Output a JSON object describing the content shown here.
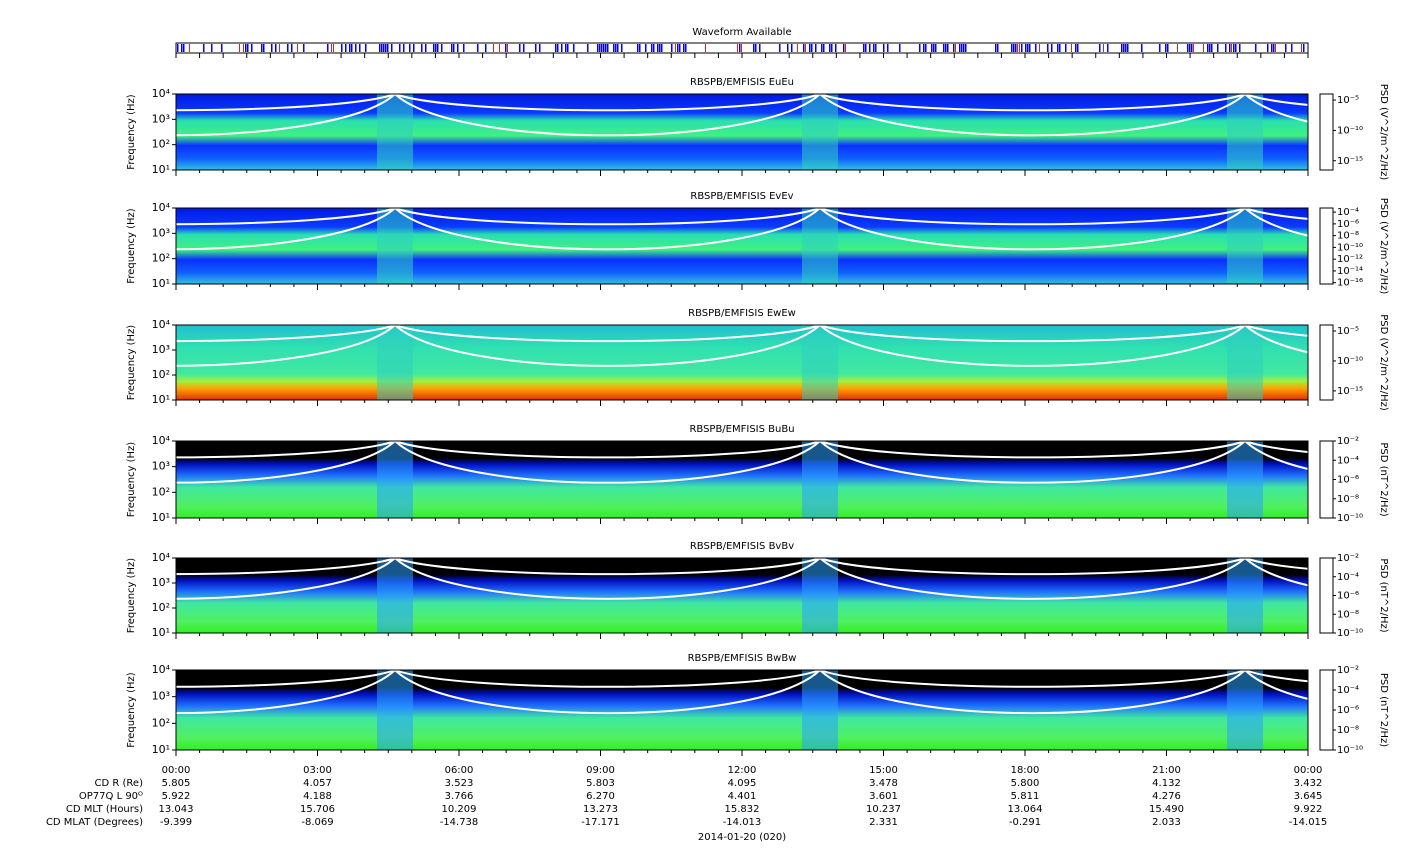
{
  "waveform": {
    "title": "Waveform Available"
  },
  "chart_data": [
    {
      "type": "spectrogram",
      "title": "RBSPB/EMFISIS  EuEu",
      "ylabel": "Frequency (Hz)",
      "log_y": true,
      "style": "electric",
      "ylim": [
        10,
        10000
      ],
      "yticks": [
        {
          "value": 10,
          "label": "10¹"
        },
        {
          "value": 100,
          "label": "10²"
        },
        {
          "value": 1000,
          "label": "10³"
        },
        {
          "value": 10000,
          "label": "10⁴"
        }
      ],
      "colorbar": {
        "label": "PSD (V^2/m^2/Hz)",
        "lim": [
          3e-17,
          0.0001
        ],
        "ticks": [
          {
            "value": 1e-05,
            "label": "10⁻⁵"
          },
          {
            "value": 1e-10,
            "label": "10⁻¹⁰"
          },
          {
            "value": 1e-15,
            "label": "10⁻¹⁵"
          }
        ]
      }
    },
    {
      "type": "spectrogram",
      "title": "RBSPB/EMFISIS  EvEv",
      "ylabel": "Frequency (Hz)",
      "log_y": true,
      "style": "electric",
      "ylim": [
        10,
        10000
      ],
      "yticks": [
        {
          "value": 10,
          "label": "10¹"
        },
        {
          "value": 100,
          "label": "10²"
        },
        {
          "value": 1000,
          "label": "10³"
        },
        {
          "value": 10000,
          "label": "10⁴"
        }
      ],
      "colorbar": {
        "label": "PSD (V^2/m^2/Hz)",
        "lim": [
          6e-17,
          0.0005
        ],
        "ticks": [
          {
            "value": 0.0001,
            "label": "10⁻⁴"
          },
          {
            "value": 1e-06,
            "label": "10⁻⁶"
          },
          {
            "value": 1e-08,
            "label": "10⁻⁸"
          },
          {
            "value": 1e-10,
            "label": "10⁻¹⁰"
          },
          {
            "value": 1e-12,
            "label": "10⁻¹²"
          },
          {
            "value": 1e-14,
            "label": "10⁻¹⁴"
          },
          {
            "value": 1e-16,
            "label": "10⁻¹⁶"
          }
        ]
      }
    },
    {
      "type": "spectrogram",
      "title": "RBSPB/EMFISIS  EwEw",
      "ylabel": "Frequency (Hz)",
      "log_y": true,
      "style": "electric-w",
      "ylim": [
        10,
        10000
      ],
      "yticks": [
        {
          "value": 10,
          "label": "10¹"
        },
        {
          "value": 100,
          "label": "10²"
        },
        {
          "value": 1000,
          "label": "10³"
        },
        {
          "value": 10000,
          "label": "10⁴"
        }
      ],
      "colorbar": {
        "label": "PSD (V^2/m^2/Hz)",
        "lim": [
          3e-17,
          0.0001
        ],
        "ticks": [
          {
            "value": 1e-05,
            "label": "10⁻⁵"
          },
          {
            "value": 1e-10,
            "label": "10⁻¹⁰"
          },
          {
            "value": 1e-15,
            "label": "10⁻¹⁵"
          }
        ]
      }
    },
    {
      "type": "spectrogram",
      "title": "RBSPB/EMFISIS  BuBu",
      "ylabel": "Frequency (Hz)",
      "log_y": true,
      "style": "magnetic",
      "ylim": [
        10,
        10000
      ],
      "yticks": [
        {
          "value": 10,
          "label": "10¹"
        },
        {
          "value": 100,
          "label": "10²"
        },
        {
          "value": 1000,
          "label": "10³"
        },
        {
          "value": 10000,
          "label": "10⁴"
        }
      ],
      "colorbar": {
        "label": "PSD (nT^2/Hz)",
        "lim": [
          1e-10,
          0.01
        ],
        "ticks": [
          {
            "value": 0.01,
            "label": "10⁻²"
          },
          {
            "value": 0.0001,
            "label": "10⁻⁴"
          },
          {
            "value": 1e-06,
            "label": "10⁻⁶"
          },
          {
            "value": 1e-08,
            "label": "10⁻⁸"
          },
          {
            "value": 1e-10,
            "label": "10⁻¹⁰"
          }
        ]
      }
    },
    {
      "type": "spectrogram",
      "title": "RBSPB/EMFISIS  BvBv",
      "ylabel": "Frequency (Hz)",
      "log_y": true,
      "style": "magnetic",
      "ylim": [
        10,
        10000
      ],
      "yticks": [
        {
          "value": 10,
          "label": "10¹"
        },
        {
          "value": 100,
          "label": "10²"
        },
        {
          "value": 1000,
          "label": "10³"
        },
        {
          "value": 10000,
          "label": "10⁴"
        }
      ],
      "colorbar": {
        "label": "PSD (nT^2/Hz)",
        "lim": [
          1e-10,
          0.01
        ],
        "ticks": [
          {
            "value": 0.01,
            "label": "10⁻²"
          },
          {
            "value": 0.0001,
            "label": "10⁻⁴"
          },
          {
            "value": 1e-06,
            "label": "10⁻⁶"
          },
          {
            "value": 1e-08,
            "label": "10⁻⁸"
          },
          {
            "value": 1e-10,
            "label": "10⁻¹⁰"
          }
        ]
      }
    },
    {
      "type": "spectrogram",
      "title": "RBSPB/EMFISIS  BwBw",
      "ylabel": "Frequency (Hz)",
      "log_y": true,
      "style": "magnetic",
      "ylim": [
        10,
        10000
      ],
      "yticks": [
        {
          "value": 10,
          "label": "10¹"
        },
        {
          "value": 100,
          "label": "10²"
        },
        {
          "value": 1000,
          "label": "10³"
        },
        {
          "value": 10000,
          "label": "10⁴"
        }
      ],
      "colorbar": {
        "label": "PSD (nT^2/Hz)",
        "lim": [
          1e-10,
          0.01
        ],
        "ticks": [
          {
            "value": 0.01,
            "label": "10⁻²"
          },
          {
            "value": 0.0001,
            "label": "10⁻⁴"
          },
          {
            "value": 1e-06,
            "label": "10⁻⁶"
          },
          {
            "value": 1e-08,
            "label": "10⁻⁸"
          },
          {
            "value": 1e-10,
            "label": "10⁻¹⁰"
          }
        ]
      }
    }
  ],
  "time_axis": {
    "ticks": [
      "00:00",
      "03:00",
      "06:00",
      "09:00",
      "12:00",
      "15:00",
      "18:00",
      "21:00",
      "00:00"
    ],
    "date": "2014-01-20 (020)"
  },
  "ephemeris": [
    {
      "label": "CD R (Re)",
      "values": [
        "5.805",
        "4.057",
        "3.523",
        "5.803",
        "4.095",
        "3.478",
        "5.800",
        "4.132",
        "3.432"
      ]
    },
    {
      "label": "OP77Q L 90ᴼ",
      "values": [
        "5.922",
        "4.188",
        "3.766",
        "6.270",
        "4.401",
        "3.601",
        "5.811",
        "4.276",
        "3.645"
      ]
    },
    {
      "label": "CD MLT (Hours)",
      "values": [
        "13.043",
        "15.706",
        "10.209",
        "13.273",
        "15.832",
        "10.237",
        "13.064",
        "15.490",
        "9.922"
      ]
    },
    {
      "label": "CD MLAT (Degrees)",
      "values": [
        "-9.399",
        "-8.069",
        "-14.738",
        "-17.171",
        "-14.013",
        "2.331",
        "-0.291",
        "2.033",
        "-14.015"
      ]
    }
  ]
}
